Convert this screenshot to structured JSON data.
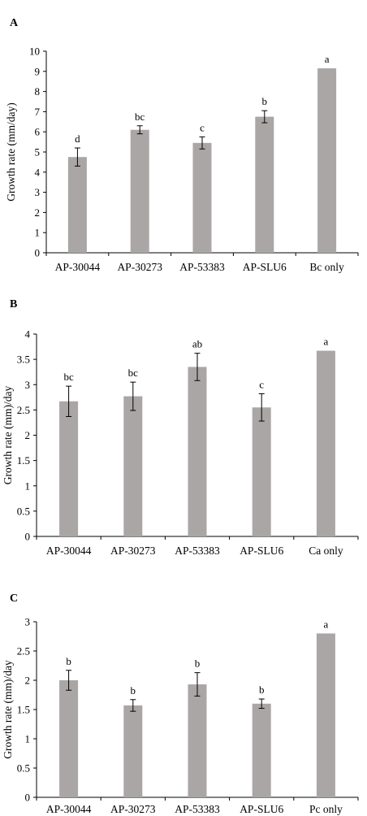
{
  "chart_data": [
    {
      "type": "bar",
      "panel": "A",
      "categories": [
        "AP-30044",
        "AP-30273",
        "AP-53383",
        "AP-SLU6",
        "Bc  only"
      ],
      "values": [
        4.75,
        6.1,
        5.45,
        6.75,
        9.15
      ],
      "errors": [
        0.45,
        0.2,
        0.3,
        0.3,
        0
      ],
      "letters": [
        "d",
        "bc",
        "c",
        "b",
        "a"
      ],
      "ylabel": "Growth rate  (mm/day)",
      "ylim": [
        0,
        10
      ],
      "yticks": [
        "0",
        "1",
        "2",
        "3",
        "4",
        "5",
        "6",
        "7",
        "8",
        "9",
        "10"
      ],
      "bar_color": "#aaa6a6"
    },
    {
      "type": "bar",
      "panel": "B",
      "categories": [
        "AP-30044",
        "AP-30273",
        "AP-53383",
        "AP-SLU6",
        "Ca only"
      ],
      "values": [
        2.67,
        2.77,
        3.35,
        2.55,
        3.67
      ],
      "errors": [
        0.3,
        0.28,
        0.27,
        0.27,
        0
      ],
      "letters": [
        "bc",
        "bc",
        "ab",
        "c",
        "a"
      ],
      "ylabel": "Growth rate (mm)/day",
      "ylim": [
        0,
        4
      ],
      "yticks": [
        "0",
        "0.5",
        "1",
        "1.5",
        "2",
        "2.5",
        "3",
        "3.5",
        "4"
      ],
      "bar_color": "#aaa6a6"
    },
    {
      "type": "bar",
      "panel": "C",
      "categories": [
        "AP-30044",
        "AP-30273",
        "AP-53383",
        "AP-SLU6",
        "Pc only"
      ],
      "values": [
        2.0,
        1.57,
        1.93,
        1.6,
        2.8
      ],
      "errors": [
        0.17,
        0.1,
        0.2,
        0.08,
        0
      ],
      "letters": [
        "b",
        "b",
        "b",
        "b",
        "a"
      ],
      "ylabel": "Growth rate (mm)/day",
      "ylim": [
        0,
        3
      ],
      "yticks": [
        "0",
        "0.5",
        "1",
        "1.5",
        "2",
        "2.5",
        "3"
      ],
      "bar_color": "#aaa6a6"
    }
  ]
}
